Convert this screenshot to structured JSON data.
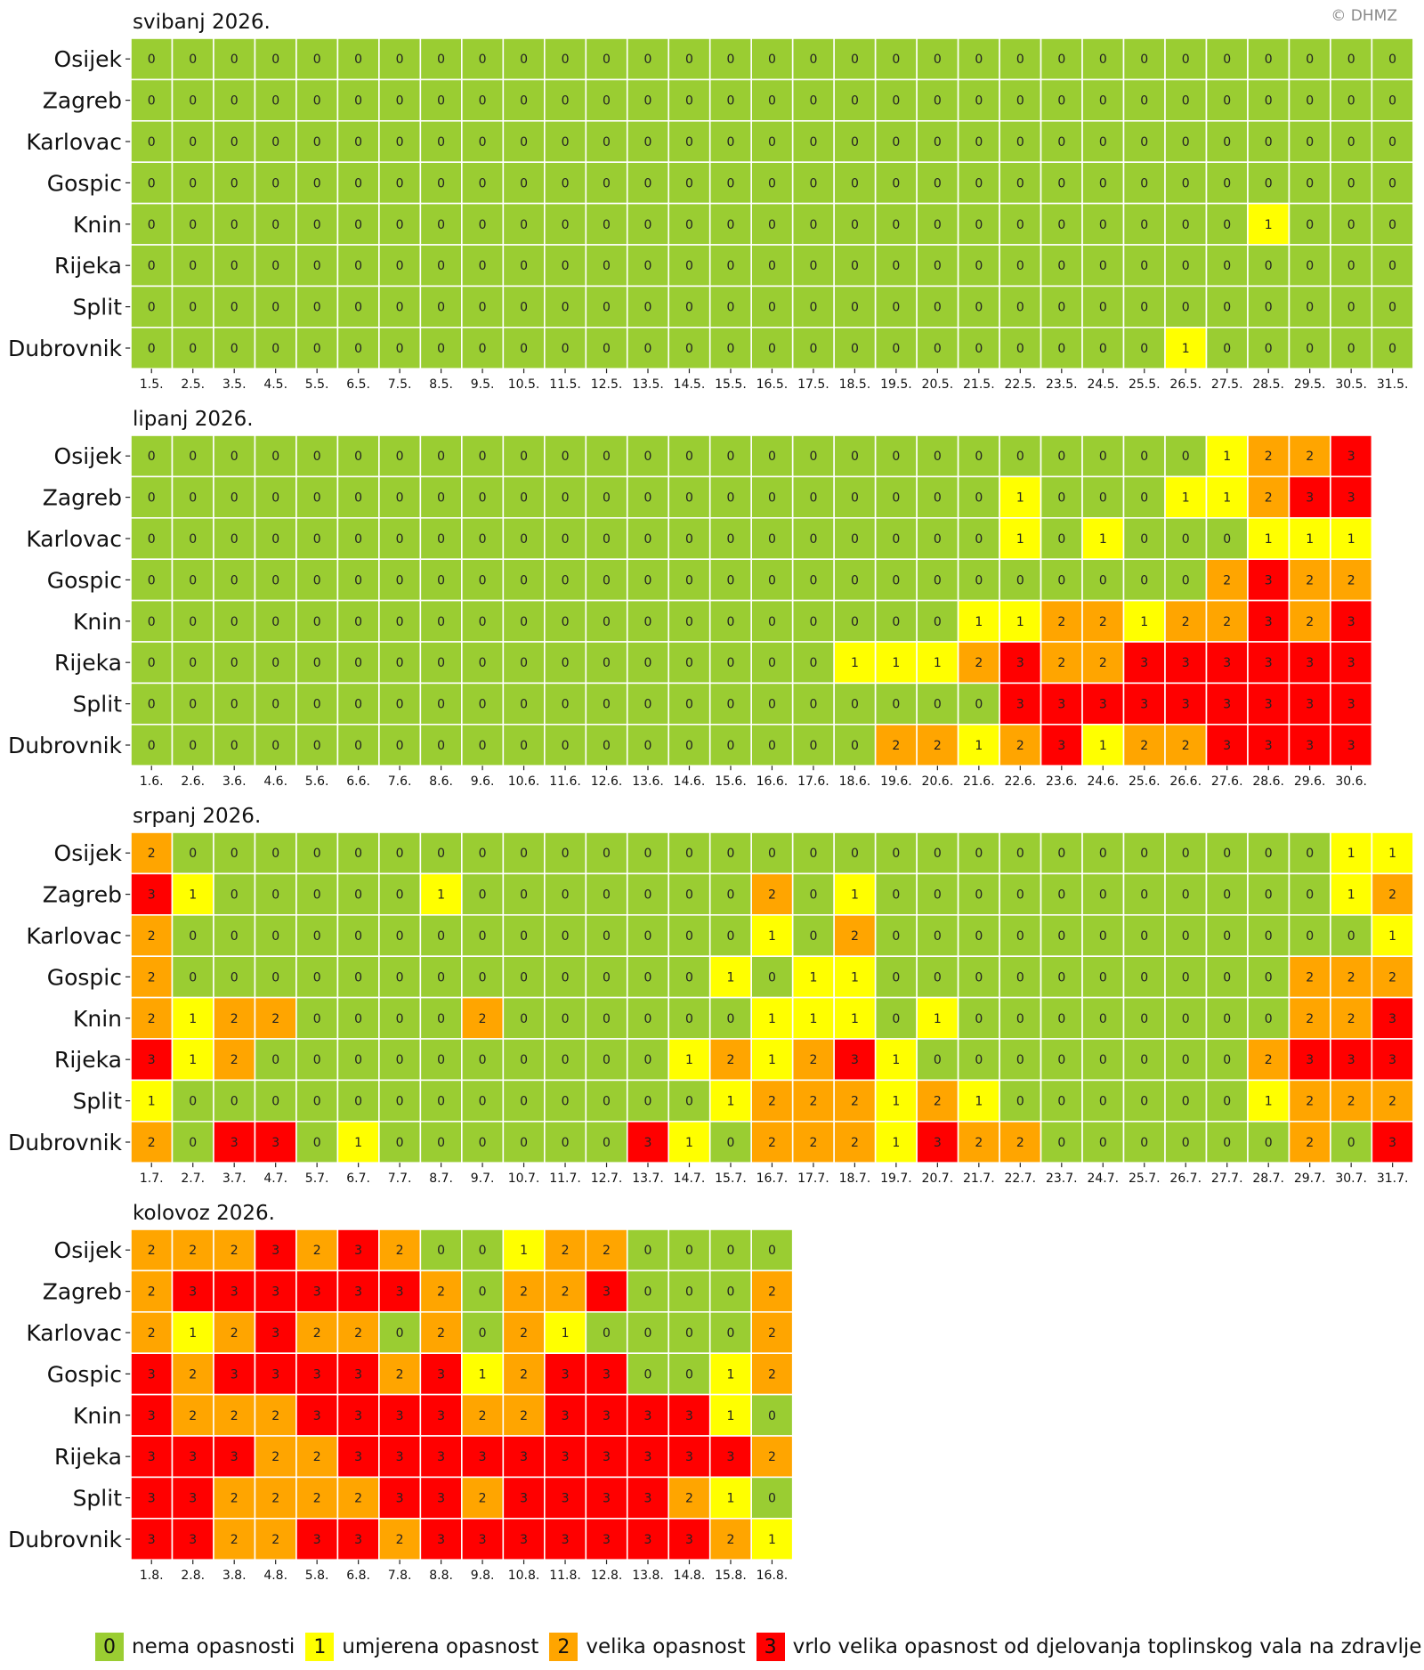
{
  "copyright": "© DHMZ",
  "colors": {
    "0": "#9acd32",
    "1": "#ffff00",
    "2": "#ffa500",
    "3": "#ff0000"
  },
  "legend": [
    {
      "value": "0",
      "label": "nema opasnosti"
    },
    {
      "value": "1",
      "label": "umjerena opasnost"
    },
    {
      "value": "2",
      "label": "velika opasnost"
    },
    {
      "value": "3",
      "label": "vrlo velika opasnost od djelovanja toplinskog vala na zdravlje"
    }
  ],
  "chart_data": [
    {
      "type": "heatmap",
      "title": "svibanj 2026.",
      "rows": [
        "Osijek",
        "Zagreb",
        "Karlovac",
        "Gospic",
        "Knin",
        "Rijeka",
        "Split",
        "Dubrovnik"
      ],
      "columns": [
        "1.5.",
        "2.5.",
        "3.5.",
        "4.5.",
        "5.5.",
        "6.5.",
        "7.5.",
        "8.5.",
        "9.5.",
        "10.5.",
        "11.5.",
        "12.5.",
        "13.5.",
        "14.5.",
        "15.5.",
        "16.5.",
        "17.5.",
        "18.5.",
        "19.5.",
        "20.5.",
        "21.5.",
        "22.5.",
        "23.5.",
        "24.5.",
        "25.5.",
        "26.5.",
        "27.5.",
        "28.5.",
        "29.5.",
        "30.5.",
        "31.5."
      ],
      "values": [
        [
          0,
          0,
          0,
          0,
          0,
          0,
          0,
          0,
          0,
          0,
          0,
          0,
          0,
          0,
          0,
          0,
          0,
          0,
          0,
          0,
          0,
          0,
          0,
          0,
          0,
          0,
          0,
          0,
          0,
          0,
          0
        ],
        [
          0,
          0,
          0,
          0,
          0,
          0,
          0,
          0,
          0,
          0,
          0,
          0,
          0,
          0,
          0,
          0,
          0,
          0,
          0,
          0,
          0,
          0,
          0,
          0,
          0,
          0,
          0,
          0,
          0,
          0,
          0
        ],
        [
          0,
          0,
          0,
          0,
          0,
          0,
          0,
          0,
          0,
          0,
          0,
          0,
          0,
          0,
          0,
          0,
          0,
          0,
          0,
          0,
          0,
          0,
          0,
          0,
          0,
          0,
          0,
          0,
          0,
          0,
          0
        ],
        [
          0,
          0,
          0,
          0,
          0,
          0,
          0,
          0,
          0,
          0,
          0,
          0,
          0,
          0,
          0,
          0,
          0,
          0,
          0,
          0,
          0,
          0,
          0,
          0,
          0,
          0,
          0,
          0,
          0,
          0,
          0
        ],
        [
          0,
          0,
          0,
          0,
          0,
          0,
          0,
          0,
          0,
          0,
          0,
          0,
          0,
          0,
          0,
          0,
          0,
          0,
          0,
          0,
          0,
          0,
          0,
          0,
          0,
          0,
          0,
          1,
          0,
          0,
          0
        ],
        [
          0,
          0,
          0,
          0,
          0,
          0,
          0,
          0,
          0,
          0,
          0,
          0,
          0,
          0,
          0,
          0,
          0,
          0,
          0,
          0,
          0,
          0,
          0,
          0,
          0,
          0,
          0,
          0,
          0,
          0,
          0
        ],
        [
          0,
          0,
          0,
          0,
          0,
          0,
          0,
          0,
          0,
          0,
          0,
          0,
          0,
          0,
          0,
          0,
          0,
          0,
          0,
          0,
          0,
          0,
          0,
          0,
          0,
          0,
          0,
          0,
          0,
          0,
          0
        ],
        [
          0,
          0,
          0,
          0,
          0,
          0,
          0,
          0,
          0,
          0,
          0,
          0,
          0,
          0,
          0,
          0,
          0,
          0,
          0,
          0,
          0,
          0,
          0,
          0,
          0,
          1,
          0,
          0,
          0,
          0,
          0
        ]
      ]
    },
    {
      "type": "heatmap",
      "title": "lipanj 2026.",
      "rows": [
        "Osijek",
        "Zagreb",
        "Karlovac",
        "Gospic",
        "Knin",
        "Rijeka",
        "Split",
        "Dubrovnik"
      ],
      "columns": [
        "1.6.",
        "2.6.",
        "3.6.",
        "4.6.",
        "5.6.",
        "6.6.",
        "7.6.",
        "8.6.",
        "9.6.",
        "10.6.",
        "11.6.",
        "12.6.",
        "13.6.",
        "14.6.",
        "15.6.",
        "16.6.",
        "17.6.",
        "18.6.",
        "19.6.",
        "20.6.",
        "21.6.",
        "22.6.",
        "23.6.",
        "24.6.",
        "25.6.",
        "26.6.",
        "27.6.",
        "28.6.",
        "29.6.",
        "30.6."
      ],
      "values": [
        [
          0,
          0,
          0,
          0,
          0,
          0,
          0,
          0,
          0,
          0,
          0,
          0,
          0,
          0,
          0,
          0,
          0,
          0,
          0,
          0,
          0,
          0,
          0,
          0,
          0,
          0,
          1,
          2,
          2,
          3
        ],
        [
          0,
          0,
          0,
          0,
          0,
          0,
          0,
          0,
          0,
          0,
          0,
          0,
          0,
          0,
          0,
          0,
          0,
          0,
          0,
          0,
          0,
          1,
          0,
          0,
          0,
          1,
          1,
          2,
          3,
          3
        ],
        [
          0,
          0,
          0,
          0,
          0,
          0,
          0,
          0,
          0,
          0,
          0,
          0,
          0,
          0,
          0,
          0,
          0,
          0,
          0,
          0,
          0,
          1,
          0,
          1,
          0,
          0,
          0,
          1,
          1,
          1
        ],
        [
          0,
          0,
          0,
          0,
          0,
          0,
          0,
          0,
          0,
          0,
          0,
          0,
          0,
          0,
          0,
          0,
          0,
          0,
          0,
          0,
          0,
          0,
          0,
          0,
          0,
          0,
          2,
          3,
          2,
          2
        ],
        [
          0,
          0,
          0,
          0,
          0,
          0,
          0,
          0,
          0,
          0,
          0,
          0,
          0,
          0,
          0,
          0,
          0,
          0,
          0,
          0,
          1,
          1,
          2,
          2,
          1,
          2,
          2,
          3,
          2,
          3
        ],
        [
          0,
          0,
          0,
          0,
          0,
          0,
          0,
          0,
          0,
          0,
          0,
          0,
          0,
          0,
          0,
          0,
          0,
          1,
          1,
          1,
          2,
          3,
          2,
          2,
          3,
          3,
          3,
          3,
          3,
          3
        ],
        [
          0,
          0,
          0,
          0,
          0,
          0,
          0,
          0,
          0,
          0,
          0,
          0,
          0,
          0,
          0,
          0,
          0,
          0,
          0,
          0,
          0,
          3,
          3,
          3,
          3,
          3,
          3,
          3,
          3,
          3
        ],
        [
          0,
          0,
          0,
          0,
          0,
          0,
          0,
          0,
          0,
          0,
          0,
          0,
          0,
          0,
          0,
          0,
          0,
          0,
          2,
          2,
          1,
          2,
          3,
          1,
          2,
          2,
          3,
          3,
          3,
          3
        ]
      ]
    },
    {
      "type": "heatmap",
      "title": "srpanj 2026.",
      "rows": [
        "Osijek",
        "Zagreb",
        "Karlovac",
        "Gospic",
        "Knin",
        "Rijeka",
        "Split",
        "Dubrovnik"
      ],
      "columns": [
        "1.7.",
        "2.7.",
        "3.7.",
        "4.7.",
        "5.7.",
        "6.7.",
        "7.7.",
        "8.7.",
        "9.7.",
        "10.7.",
        "11.7.",
        "12.7.",
        "13.7.",
        "14.7.",
        "15.7.",
        "16.7.",
        "17.7.",
        "18.7.",
        "19.7.",
        "20.7.",
        "21.7.",
        "22.7.",
        "23.7.",
        "24.7.",
        "25.7.",
        "26.7.",
        "27.7.",
        "28.7.",
        "29.7.",
        "30.7.",
        "31.7."
      ],
      "values": [
        [
          2,
          0,
          0,
          0,
          0,
          0,
          0,
          0,
          0,
          0,
          0,
          0,
          0,
          0,
          0,
          0,
          0,
          0,
          0,
          0,
          0,
          0,
          0,
          0,
          0,
          0,
          0,
          0,
          0,
          1,
          1
        ],
        [
          3,
          1,
          0,
          0,
          0,
          0,
          0,
          1,
          0,
          0,
          0,
          0,
          0,
          0,
          0,
          2,
          0,
          1,
          0,
          0,
          0,
          0,
          0,
          0,
          0,
          0,
          0,
          0,
          0,
          1,
          2
        ],
        [
          2,
          0,
          0,
          0,
          0,
          0,
          0,
          0,
          0,
          0,
          0,
          0,
          0,
          0,
          0,
          1,
          0,
          2,
          0,
          0,
          0,
          0,
          0,
          0,
          0,
          0,
          0,
          0,
          0,
          0,
          1
        ],
        [
          2,
          0,
          0,
          0,
          0,
          0,
          0,
          0,
          0,
          0,
          0,
          0,
          0,
          0,
          1,
          0,
          1,
          1,
          0,
          0,
          0,
          0,
          0,
          0,
          0,
          0,
          0,
          0,
          2,
          2,
          2
        ],
        [
          2,
          1,
          2,
          2,
          0,
          0,
          0,
          0,
          2,
          0,
          0,
          0,
          0,
          0,
          0,
          1,
          1,
          1,
          0,
          1,
          0,
          0,
          0,
          0,
          0,
          0,
          0,
          0,
          2,
          2,
          3
        ],
        [
          3,
          1,
          2,
          0,
          0,
          0,
          0,
          0,
          0,
          0,
          0,
          0,
          0,
          1,
          2,
          1,
          2,
          3,
          1,
          0,
          0,
          0,
          0,
          0,
          0,
          0,
          0,
          2,
          3,
          3,
          3
        ],
        [
          1,
          0,
          0,
          0,
          0,
          0,
          0,
          0,
          0,
          0,
          0,
          0,
          0,
          0,
          1,
          2,
          2,
          2,
          1,
          2,
          1,
          0,
          0,
          0,
          0,
          0,
          0,
          1,
          2,
          2,
          2
        ],
        [
          2,
          0,
          3,
          3,
          0,
          1,
          0,
          0,
          0,
          0,
          0,
          0,
          3,
          1,
          0,
          2,
          2,
          2,
          1,
          3,
          2,
          2,
          0,
          0,
          0,
          0,
          0,
          0,
          2,
          0,
          3
        ]
      ]
    },
    {
      "type": "heatmap",
      "title": "kolovoz 2026.",
      "rows": [
        "Osijek",
        "Zagreb",
        "Karlovac",
        "Gospic",
        "Knin",
        "Rijeka",
        "Split",
        "Dubrovnik"
      ],
      "columns": [
        "1.8.",
        "2.8.",
        "3.8.",
        "4.8.",
        "5.8.",
        "6.8.",
        "7.8.",
        "8.8.",
        "9.8.",
        "10.8.",
        "11.8.",
        "12.8.",
        "13.8.",
        "14.8.",
        "15.8.",
        "16.8."
      ],
      "values": [
        [
          2,
          2,
          2,
          3,
          2,
          3,
          2,
          0,
          0,
          1,
          2,
          2,
          0,
          0,
          0,
          0
        ],
        [
          2,
          3,
          3,
          3,
          3,
          3,
          3,
          2,
          0,
          2,
          2,
          3,
          0,
          0,
          0,
          2
        ],
        [
          2,
          1,
          2,
          3,
          2,
          2,
          0,
          2,
          0,
          2,
          1,
          0,
          0,
          0,
          0,
          2
        ],
        [
          3,
          2,
          3,
          3,
          3,
          3,
          2,
          3,
          1,
          2,
          3,
          3,
          0,
          0,
          1,
          2
        ],
        [
          3,
          2,
          2,
          2,
          3,
          3,
          3,
          3,
          2,
          2,
          3,
          3,
          3,
          3,
          1,
          0
        ],
        [
          3,
          3,
          3,
          2,
          2,
          3,
          3,
          3,
          3,
          3,
          3,
          3,
          3,
          3,
          3,
          2
        ],
        [
          3,
          3,
          2,
          2,
          2,
          2,
          3,
          3,
          2,
          3,
          3,
          3,
          3,
          2,
          1,
          0
        ],
        [
          3,
          3,
          2,
          2,
          3,
          3,
          2,
          3,
          3,
          3,
          3,
          3,
          3,
          3,
          2,
          1
        ]
      ]
    }
  ]
}
